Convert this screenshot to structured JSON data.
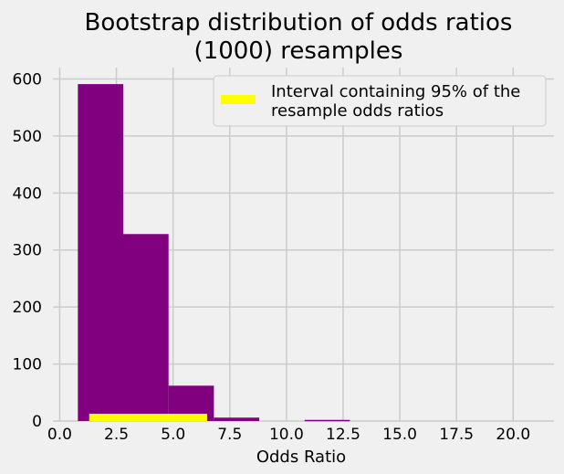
{
  "chart_data": {
    "type": "bar",
    "title": [
      "Bootstrap distribution of odds ratios",
      "(1000) resamples"
    ],
    "xlabel": "Odds Ratio",
    "ylabel": "",
    "xlim": [
      -0.3,
      21.8
    ],
    "ylim": [
      0,
      620
    ],
    "xticks": [
      0.0,
      2.5,
      5.0,
      7.5,
      10.0,
      12.5,
      15.0,
      17.5,
      20.0
    ],
    "xtick_labels": [
      "0.0",
      "2.5",
      "5.0",
      "7.5",
      "10.0",
      "12.5",
      "15.0",
      "17.5",
      "20.0"
    ],
    "yticks": [
      0,
      100,
      200,
      300,
      400,
      500,
      600
    ],
    "ytick_labels": [
      "0",
      "100",
      "200",
      "300",
      "400",
      "500",
      "600"
    ],
    "grid": true,
    "bins": [
      {
        "x0": 0.8,
        "x1": 2.8,
        "count": 591
      },
      {
        "x0": 2.8,
        "x1": 4.8,
        "count": 328
      },
      {
        "x0": 4.8,
        "x1": 6.8,
        "count": 62
      },
      {
        "x0": 6.8,
        "x1": 8.8,
        "count": 6
      },
      {
        "x0": 8.8,
        "x1": 10.8,
        "count": 0
      },
      {
        "x0": 10.8,
        "x1": 12.8,
        "count": 2
      }
    ],
    "bar_color": "#800080",
    "interval": {
      "low": 1.3,
      "high": 6.5,
      "color": "#ffff00",
      "label": [
        "Interval containing 95% of the",
        "resample odds ratios"
      ]
    },
    "legend_position": "top-right"
  }
}
